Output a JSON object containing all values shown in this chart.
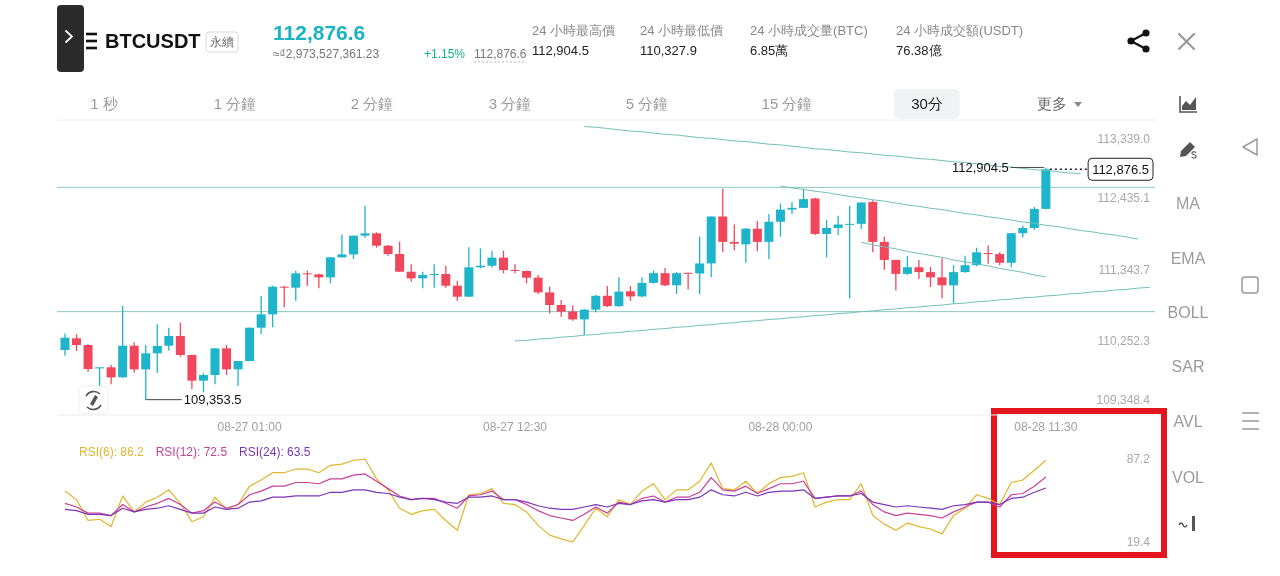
{
  "chart_data": [
    {
      "type": "other",
      "title": "BTCUSDT",
      "annotations": [
        "永續",
        "112,876.6",
        "≈₫2,973,527,361.23",
        "+1.15%",
        "112,876.6",
        "24 小時最高價",
        "112,904.5",
        "24 小時最低價",
        "110,327.9",
        "24 小時成交量(BTC)",
        "6.85萬",
        "24 小時成交額(USDT)",
        "76.38億",
        "1 秒",
        "1 分鐘",
        "2 分鐘",
        "3 分鐘",
        "5 分鐘",
        "15 分鐘",
        "30分",
        "更多",
        "MA",
        "EMA",
        "BOLL",
        "SAR",
        "AVL",
        "VOL"
      ]
    },
    {
      "type": "candlestick",
      "categories": [
        null,
        null,
        null,
        null,
        null,
        null,
        null,
        null,
        null,
        null,
        null,
        null,
        null,
        null,
        null,
        null,
        "08-27 01:00",
        null,
        null,
        null,
        null,
        null,
        null,
        null,
        null,
        null,
        null,
        null,
        null,
        null,
        null,
        null,
        null,
        null,
        null,
        null,
        null,
        null,
        null,
        "08-27 12:30",
        null,
        null,
        null,
        null,
        null,
        null,
        null,
        null,
        null,
        null,
        null,
        null,
        null,
        null,
        null,
        null,
        null,
        null,
        null,
        null,
        null,
        null,
        "08-28 00:00",
        null,
        null,
        null,
        null,
        null,
        null,
        null,
        null,
        null,
        null,
        null,
        null,
        null,
        null,
        null,
        null,
        null,
        null,
        null,
        null,
        null,
        null,
        "08-28 11:30",
        null,
        null,
        null,
        null,
        null,
        null,
        null,
        null,
        null
      ],
      "ohlc": [
        [
          110113,
          110367,
          110026,
          110301
        ],
        [
          110291,
          110352,
          110097,
          110189
        ],
        [
          110189,
          110199,
          109781,
          109822
        ],
        [
          109832,
          109850,
          109567,
          109848
        ],
        [
          109848,
          109883,
          109588,
          109695
        ],
        [
          109695,
          110790,
          109690,
          110179
        ],
        [
          110179,
          110230,
          109766,
          109817
        ],
        [
          109817,
          110189,
          109353.5,
          110062
        ],
        [
          110062,
          110505,
          109766,
          110174
        ],
        [
          110179,
          110454,
          110102,
          110327
        ],
        [
          110327,
          110531,
          110011,
          110036
        ],
        [
          110036,
          110040,
          109516,
          109644
        ],
        [
          109644,
          109756,
          109465,
          109730
        ],
        [
          109730,
          110140,
          109588,
          110138
        ],
        [
          110138,
          110189,
          109730,
          109817
        ],
        [
          109817,
          109946,
          109562,
          109944
        ],
        [
          109944,
          110456,
          109942,
          110454
        ],
        [
          110454,
          110938,
          110357,
          110658
        ],
        [
          110658,
          111096,
          110459,
          111081
        ],
        [
          111081,
          111096,
          110765,
          111066
        ],
        [
          111066,
          111326,
          110867,
          111285
        ],
        [
          111285,
          111326,
          111091,
          111270
        ],
        [
          111270,
          111280,
          111056,
          111224
        ],
        [
          111224,
          111532,
          111132,
          111530
        ],
        [
          111530,
          111881,
          111528,
          111575
        ],
        [
          111575,
          111863,
          111504,
          111861
        ],
        [
          111861,
          112320,
          111830,
          111897
        ],
        [
          111897,
          111912,
          111677,
          111708
        ],
        [
          111708,
          111718,
          111555,
          111581
        ],
        [
          111581,
          111769,
          111308,
          111310
        ],
        [
          111310,
          111423,
          111157,
          111209
        ],
        [
          111209,
          111310,
          111056,
          111259
        ],
        [
          111259,
          111423,
          111066,
          111275
        ],
        [
          111275,
          111402,
          111066,
          111096
        ],
        [
          111096,
          111173,
          110867,
          110928
        ],
        [
          110928,
          111683,
          110926,
          111377
        ],
        [
          111377,
          111667,
          111361,
          111402
        ],
        [
          111402,
          111626,
          111372,
          111525
        ],
        [
          111525,
          111631,
          111285,
          111336
        ],
        [
          111336,
          111423,
          111285,
          111321
        ],
        [
          111321,
          111331,
          111132,
          111219
        ],
        [
          111219,
          111259,
          110969,
          110994
        ],
        [
          110994,
          111081,
          110673,
          110801
        ],
        [
          110801,
          110877,
          110622,
          110699
        ],
        [
          110703,
          110793,
          110560,
          110581
        ],
        [
          110581,
          110740,
          110342,
          110730
        ],
        [
          110730,
          110958,
          110692,
          110942
        ],
        [
          110942,
          111091,
          110772,
          110783
        ],
        [
          110783,
          111224,
          110772,
          111006
        ],
        [
          111011,
          111091,
          110863,
          110932
        ],
        [
          110932,
          111224,
          110920,
          111139
        ],
        [
          111139,
          111330,
          111128,
          111288
        ],
        [
          111288,
          111367,
          111091,
          111102
        ],
        [
          111102,
          111304,
          110969,
          111288
        ],
        [
          111293,
          111295,
          111038,
          111283
        ],
        [
          111283,
          111846,
          110969,
          111437
        ],
        [
          111437,
          112156,
          111224,
          112154
        ],
        [
          112154,
          112579,
          111607,
          111766
        ],
        [
          111766,
          112032,
          111633,
          111739
        ],
        [
          111729,
          111979,
          111447,
          111968
        ],
        [
          111968,
          112085,
          111622,
          111766
        ],
        [
          111766,
          112191,
          111500,
          112074
        ],
        [
          112074,
          112351,
          111846,
          112260
        ],
        [
          112260,
          112377,
          112191,
          112287
        ],
        [
          112287,
          112579,
          112282,
          112420
        ],
        [
          112430,
          112441,
          111872,
          111888
        ],
        [
          111888,
          112101,
          111527,
          111979
        ],
        [
          111979,
          112165,
          111872,
          112032
        ],
        [
          112032,
          112314,
          110900,
          112042
        ],
        [
          112042,
          112377,
          111963,
          112367
        ],
        [
          112377,
          112404,
          111607,
          111766
        ],
        [
          111766,
          111846,
          111341,
          111490
        ],
        [
          111490,
          111492,
          111022,
          111277
        ],
        [
          111277,
          111553,
          111261,
          111378
        ],
        [
          111378,
          111490,
          111197,
          111304
        ],
        [
          111304,
          111383,
          111075,
          111224
        ],
        [
          111224,
          111516,
          110905,
          111102
        ],
        [
          111102,
          111410,
          110825,
          111304
        ],
        [
          111304,
          111553,
          111293,
          111410
        ],
        [
          111410,
          111676,
          111394,
          111607
        ],
        [
          111596,
          111713,
          111431,
          111580
        ],
        [
          111580,
          111607,
          111410,
          111447
        ],
        [
          111447,
          111901,
          111378,
          111899
        ],
        [
          111899,
          112016,
          111835,
          111979
        ],
        [
          111979,
          112298,
          111952,
          112271
        ],
        [
          112271,
          112904.5,
          112260,
          112876.5
        ],
        null,
        null,
        null,
        null,
        null,
        null,
        null,
        null,
        null
      ],
      "colors": [
        "#1eb4ca",
        "#f1475c",
        "#f1475c",
        "#1eb4ca",
        "#f1475c",
        "#1eb4ca",
        "#f1475c",
        "#1eb4ca",
        "#1eb4ca",
        "#1eb4ca",
        "#f1475c",
        "#f1475c",
        "#1eb4ca",
        "#1eb4ca",
        "#f1475c",
        "#1eb4ca",
        "#1eb4ca",
        "#1eb4ca",
        "#1eb4ca",
        "#f1475c",
        "#1eb4ca",
        "#f1475c",
        "#f1475c",
        "#1eb4ca",
        "#1eb4ca",
        "#1eb4ca",
        "#1eb4ca",
        "#f1475c",
        "#f1475c",
        "#f1475c",
        "#f1475c",
        "#1eb4ca",
        "#1eb4ca",
        "#f1475c",
        "#f1475c",
        "#1eb4ca",
        "#1eb4ca",
        "#1eb4ca",
        "#f1475c",
        "#f1475c",
        "#f1475c",
        "#f1475c",
        "#f1475c",
        "#f1475c",
        "#f1475c",
        "#1eb4ca",
        "#1eb4ca",
        "#f1475c",
        "#1eb4ca",
        "#f1475c",
        "#1eb4ca",
        "#1eb4ca",
        "#f1475c",
        "#1eb4ca",
        "#f1475c",
        "#1eb4ca",
        "#1eb4ca",
        "#f1475c",
        "#f1475c",
        "#1eb4ca",
        "#f1475c",
        "#1eb4ca",
        "#1eb4ca",
        "#1eb4ca",
        "#1eb4ca",
        "#f1475c",
        "#1eb4ca",
        "#1eb4ca",
        "#1eb4ca",
        "#1eb4ca",
        "#f1475c",
        "#f1475c",
        "#f1475c",
        "#1eb4ca",
        "#f1475c",
        "#f1475c",
        "#f1475c",
        "#1eb4ca",
        "#1eb4ca",
        "#1eb4ca",
        "#f1475c",
        "#f1475c",
        "#1eb4ca",
        "#1eb4ca",
        "#1eb4ca",
        "#1eb4ca",
        null,
        null,
        null,
        null,
        null,
        null,
        null,
        null,
        null
      ],
      "series": [
        {
          "type": "line",
          "color": "#74bfb8",
          "values": [
            null,
            null,
            null,
            null,
            null,
            null,
            null,
            null,
            null,
            null,
            null,
            null,
            null,
            null,
            null,
            null,
            null,
            null,
            null,
            null,
            null,
            null,
            null,
            null,
            null,
            null,
            null,
            null,
            null,
            null,
            null,
            null,
            null,
            null,
            null,
            null,
            null,
            null,
            null,
            null,
            null,
            null,
            null,
            null,
            null,
            113530,
            113520,
            113500,
            113480,
            113460,
            113450,
            113430,
            113410,
            113400,
            113380,
            113360,
            113350,
            113330,
            113310,
            113300,
            113280,
            113260,
            113250,
            113230,
            113210,
            113190,
            113180,
            113160,
            113140,
            113130,
            113110,
            113090,
            113080,
            113060,
            113040,
            113030,
            113010,
            112990,
            112980,
            112960,
            112940,
            112920,
            112910,
            112890,
            112870,
            112860,
            112840,
            112820,
            112810,
            null,
            null,
            null,
            null,
            null,
            null
          ]
        },
        {
          "type": "line",
          "color": "#74bfb8",
          "values": [
            null,
            null,
            null,
            null,
            null,
            null,
            null,
            null,
            null,
            null,
            null,
            null,
            null,
            null,
            null,
            null,
            null,
            null,
            null,
            null,
            null,
            null,
            null,
            null,
            null,
            null,
            null,
            null,
            null,
            null,
            null,
            null,
            null,
            null,
            null,
            null,
            null,
            null,
            null,
            null,
            null,
            null,
            null,
            null,
            null,
            null,
            null,
            null,
            null,
            null,
            null,
            null,
            null,
            null,
            null,
            null,
            null,
            null,
            null,
            null,
            null,
            null,
            112620,
            112590,
            112570,
            112540,
            112520,
            112490,
            112460,
            112440,
            112410,
            112390,
            112360,
            112330,
            112310,
            112280,
            112260,
            112230,
            112200,
            112180,
            112150,
            112130,
            112100,
            112070,
            112050,
            112020,
            112000,
            111970,
            111940,
            111920,
            111890,
            111870,
            111840,
            111810,
            null
          ]
        },
        {
          "type": "line",
          "color": "#74bfb8",
          "values": [
            null,
            null,
            null,
            null,
            null,
            null,
            null,
            null,
            null,
            null,
            null,
            null,
            null,
            null,
            null,
            null,
            null,
            null,
            null,
            null,
            null,
            null,
            null,
            null,
            null,
            null,
            null,
            null,
            null,
            null,
            null,
            null,
            null,
            null,
            null,
            null,
            null,
            null,
            null,
            null,
            null,
            null,
            null,
            null,
            null,
            null,
            null,
            null,
            null,
            null,
            null,
            null,
            null,
            null,
            null,
            null,
            null,
            null,
            null,
            null,
            null,
            null,
            null,
            null,
            null,
            null,
            null,
            null,
            null,
            111760,
            111720,
            111690,
            111660,
            111620,
            111590,
            111560,
            111530,
            111490,
            111460,
            111430,
            111400,
            111360,
            111330,
            111300,
            111260,
            111230,
            null,
            null,
            null,
            null,
            null,
            null,
            null,
            null,
            null
          ]
        },
        {
          "type": "line",
          "color": "#74bfb8",
          "values": [
            null,
            null,
            null,
            null,
            null,
            null,
            null,
            null,
            null,
            null,
            null,
            null,
            null,
            null,
            null,
            null,
            null,
            null,
            null,
            null,
            null,
            null,
            null,
            null,
            null,
            null,
            null,
            null,
            null,
            null,
            null,
            null,
            null,
            null,
            null,
            null,
            null,
            null,
            null,
            110250,
            110260,
            110280,
            110290,
            110310,
            110320,
            110340,
            110350,
            110370,
            110380,
            110400,
            110410,
            110430,
            110440,
            110460,
            110470,
            110490,
            110500,
            110520,
            110530,
            110550,
            110560,
            110580,
            110590,
            110610,
            110620,
            110640,
            110650,
            110670,
            110680,
            110700,
            110710,
            110730,
            110740,
            110760,
            110770,
            110790,
            110800,
            110820,
            110830,
            110850,
            110860,
            110880,
            110890,
            110910,
            110920,
            110940,
            110950,
            110970,
            110980,
            111000,
            111010,
            111030,
            111040,
            111060,
            111070
          ]
        }
      ],
      "ref_lines": [
        {
          "axis": "y",
          "value": 112600,
          "color": "#8cc9c3"
        },
        {
          "axis": "y",
          "value": 110700,
          "color": "#8cc9c3"
        }
      ],
      "ylim": [
        109119,
        113630
      ],
      "yticks": [
        {
          "value": 109348.4,
          "label": "109,348.4"
        },
        {
          "value": 110252.3,
          "label": "110,252.3"
        },
        {
          "value": 111343.7,
          "label": "111,343.7"
        },
        {
          "value": 112435.1,
          "label": "112,435.1"
        },
        {
          "value": 113339.0,
          "label": "113,339.0"
        }
      ],
      "annotations": [
        {
          "text": "112,904.5",
          "x": "08-28 11:30",
          "y": 112904.5
        },
        {
          "text": "112,876.5",
          "x": "08-28 11:30",
          "y": 112876.5
        },
        "109,353.5"
      ]
    },
    {
      "type": "line",
      "categories": [
        null,
        null,
        null,
        null,
        null,
        null,
        null,
        null,
        null,
        null,
        null,
        null,
        null,
        null,
        null,
        null,
        null,
        null,
        null,
        null,
        null,
        null,
        null,
        null,
        null,
        null,
        null,
        null,
        null,
        null,
        null,
        null,
        null,
        null,
        null,
        null,
        null,
        null,
        null,
        null,
        null,
        null,
        null,
        null,
        null,
        null,
        null,
        null,
        null,
        null,
        null,
        null,
        null,
        null,
        null,
        null,
        null,
        null,
        null,
        null,
        null,
        null,
        null,
        null,
        null,
        null,
        null,
        null,
        null,
        null,
        null,
        null,
        null,
        null,
        null,
        null,
        null,
        null,
        null,
        null,
        null,
        null,
        null,
        null,
        null,
        null,
        null,
        null,
        null,
        null,
        null,
        null,
        null,
        null,
        null
      ],
      "ylim": [
        19.4,
        87.2
      ],
      "yticks": [
        19.4,
        87.2
      ],
      "tick_labels": "y",
      "series": [
        {
          "name": "RSI(6): 86.2",
          "color": "#e2b52c",
          "values": [
            61,
            54,
            37,
            38,
            32,
            57,
            44,
            52,
            56,
            62,
            51,
            36,
            40,
            56,
            46,
            50,
            65,
            70,
            76,
            76,
            79,
            79,
            76,
            82,
            83,
            86,
            87.2,
            71,
            62,
            47,
            42,
            45,
            46,
            37,
            29,
            58,
            59,
            63,
            51,
            50,
            44,
            33,
            25,
            22,
            19.4,
            33,
            47,
            40,
            54,
            50,
            61,
            67,
            54,
            62,
            62,
            69,
            84,
            63,
            62,
            69,
            59,
            67,
            72,
            73,
            76,
            48,
            52,
            54,
            54,
            67,
            41,
            34,
            29,
            35,
            32,
            30,
            26,
            41,
            47,
            58,
            55,
            50,
            68,
            70,
            78,
            86.2,
            null,
            null,
            null,
            null,
            null,
            null,
            null,
            null,
            null
          ]
        },
        {
          "name": "RSI(12): 72.5",
          "color": "#c8409a",
          "values": [
            51,
            48,
            43,
            43,
            41,
            50,
            44,
            48,
            51,
            55,
            50,
            43,
            45,
            52,
            47,
            50,
            58,
            61,
            65,
            65,
            68,
            68,
            67,
            71,
            71,
            74,
            75,
            69,
            63,
            57,
            54,
            55,
            55,
            51,
            47,
            57,
            58,
            61,
            54,
            54,
            50,
            45,
            41,
            39,
            37,
            42,
            48,
            43,
            52,
            50,
            55,
            57,
            52,
            56,
            56,
            60,
            72,
            62,
            61,
            65,
            59,
            63,
            67,
            67,
            69,
            55,
            56,
            57,
            57,
            61,
            50,
            44,
            41,
            43,
            42,
            41,
            39,
            44,
            48,
            52,
            52,
            48,
            58,
            59,
            65,
            72.5,
            null,
            null,
            null,
            null,
            null,
            null,
            null,
            null,
            null
          ]
        },
        {
          "name": "RSI(24): 63.5",
          "color": "#7d35b8",
          "values": [
            46,
            45,
            42,
            42,
            41,
            47,
            44,
            46,
            47,
            49,
            46,
            43,
            43,
            48,
            46,
            47,
            52,
            53,
            56,
            56,
            57,
            57,
            57,
            60,
            60,
            62,
            62,
            60,
            59,
            56,
            54,
            55,
            54,
            52,
            51,
            56,
            56,
            57,
            54,
            54,
            52,
            49,
            47,
            46,
            46,
            48,
            50,
            48,
            51,
            50,
            53,
            54,
            52,
            54,
            54,
            56,
            62,
            58,
            57,
            60,
            57,
            60,
            61,
            61,
            62,
            55,
            56,
            57,
            57,
            59,
            52,
            50,
            48,
            49,
            48,
            47,
            46,
            49,
            50,
            52,
            52,
            50,
            55,
            56,
            60,
            63.5,
            null,
            null,
            null,
            null,
            null,
            null,
            null,
            null,
            null
          ]
        }
      ]
    }
  ]
}
